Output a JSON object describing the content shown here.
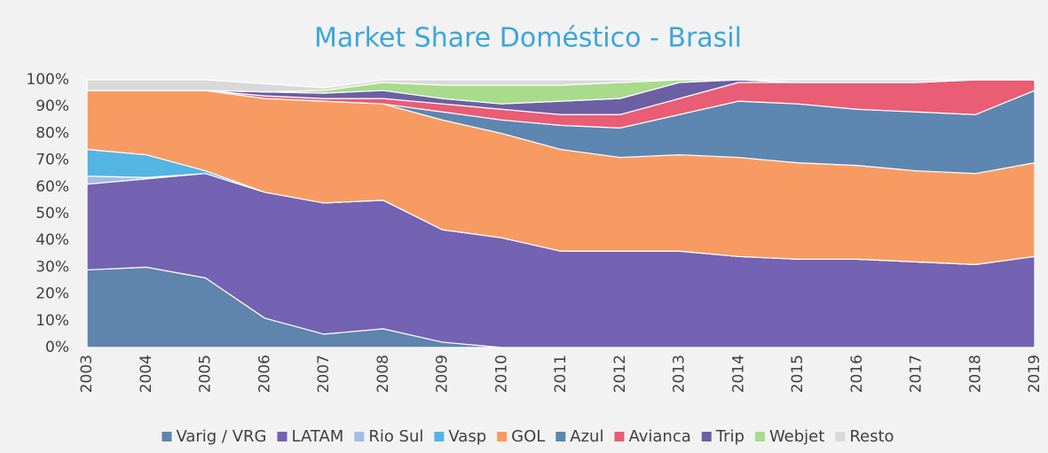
{
  "chart_data": {
    "type": "stacked-area",
    "title": "Market Share Doméstico - Brasil",
    "categories": [
      "2003",
      "2004",
      "2005",
      "2006",
      "2007",
      "2008",
      "2009",
      "2010",
      "2011",
      "2012",
      "2013",
      "2014",
      "2015",
      "2016",
      "2017",
      "2018",
      "2019"
    ],
    "series": [
      {
        "name": "Varig / VRG",
        "color": "#5f84ad",
        "values": [
          29,
          30,
          26,
          11,
          5,
          7,
          2,
          0,
          0,
          0,
          0,
          0,
          0,
          0,
          0,
          0,
          0
        ]
      },
      {
        "name": "LATAM",
        "color": "#7462b2",
        "values": [
          32,
          33,
          39,
          47,
          49,
          48,
          42,
          41,
          36,
          36,
          36,
          34,
          33,
          33,
          32,
          31,
          34
        ]
      },
      {
        "name": "Rio Sul",
        "color": "#a3bde3",
        "values": [
          3,
          0.5,
          0,
          0,
          0,
          0,
          0,
          0,
          0,
          0,
          0,
          0,
          0,
          0,
          0,
          0,
          0
        ]
      },
      {
        "name": "Vasp",
        "color": "#52b5e3",
        "values": [
          10,
          8.5,
          1,
          0,
          0,
          0,
          0,
          0,
          0,
          0,
          0,
          0,
          0,
          0,
          0,
          0,
          0
        ]
      },
      {
        "name": "GOL",
        "color": "#f89b62",
        "values": [
          22,
          24,
          30,
          35,
          38,
          36,
          41,
          39,
          38,
          35,
          36,
          37,
          36,
          35,
          34,
          34,
          35
        ]
      },
      {
        "name": "Azul",
        "color": "#5d86b1",
        "values": [
          0,
          0,
          0,
          0,
          0,
          0,
          3,
          5,
          9,
          11,
          15,
          21,
          22,
          21,
          22,
          22,
          27
        ]
      },
      {
        "name": "Avianca",
        "color": "#e95d75",
        "values": [
          0,
          0,
          0,
          1,
          1,
          2,
          3,
          4,
          4,
          5,
          6,
          7,
          8,
          10,
          11,
          13,
          4
        ]
      },
      {
        "name": "Trip",
        "color": "#6c5fa3",
        "values": [
          0,
          0,
          0,
          1.5,
          2,
          3,
          2,
          2,
          5,
          6,
          6,
          1,
          0,
          0,
          0,
          0,
          0
        ]
      },
      {
        "name": "Webjet",
        "color": "#a8db8c",
        "values": [
          0,
          0,
          0,
          0,
          1,
          3,
          5,
          7,
          6,
          6,
          1,
          0,
          0,
          0,
          0,
          0,
          0
        ]
      },
      {
        "name": "Resto",
        "color": "#d9d9d9",
        "values": [
          4,
          4,
          4,
          3,
          1,
          1,
          2,
          2,
          2,
          1,
          0,
          0,
          1,
          1,
          1,
          0,
          0
        ]
      }
    ],
    "ylim": [
      0,
      100
    ],
    "yticks": [
      {
        "value": 0,
        "label": "0%"
      },
      {
        "value": 10,
        "label": "10%"
      },
      {
        "value": 20,
        "label": "20%"
      },
      {
        "value": 30,
        "label": "30%"
      },
      {
        "value": 40,
        "label": "40%"
      },
      {
        "value": 50,
        "label": "50%"
      },
      {
        "value": 60,
        "label": "60%"
      },
      {
        "value": 70,
        "label": "70%"
      },
      {
        "value": 80,
        "label": "80%"
      },
      {
        "value": 90,
        "label": "90%"
      },
      {
        "value": 100,
        "label": "100%"
      }
    ],
    "legend": "bottom"
  }
}
